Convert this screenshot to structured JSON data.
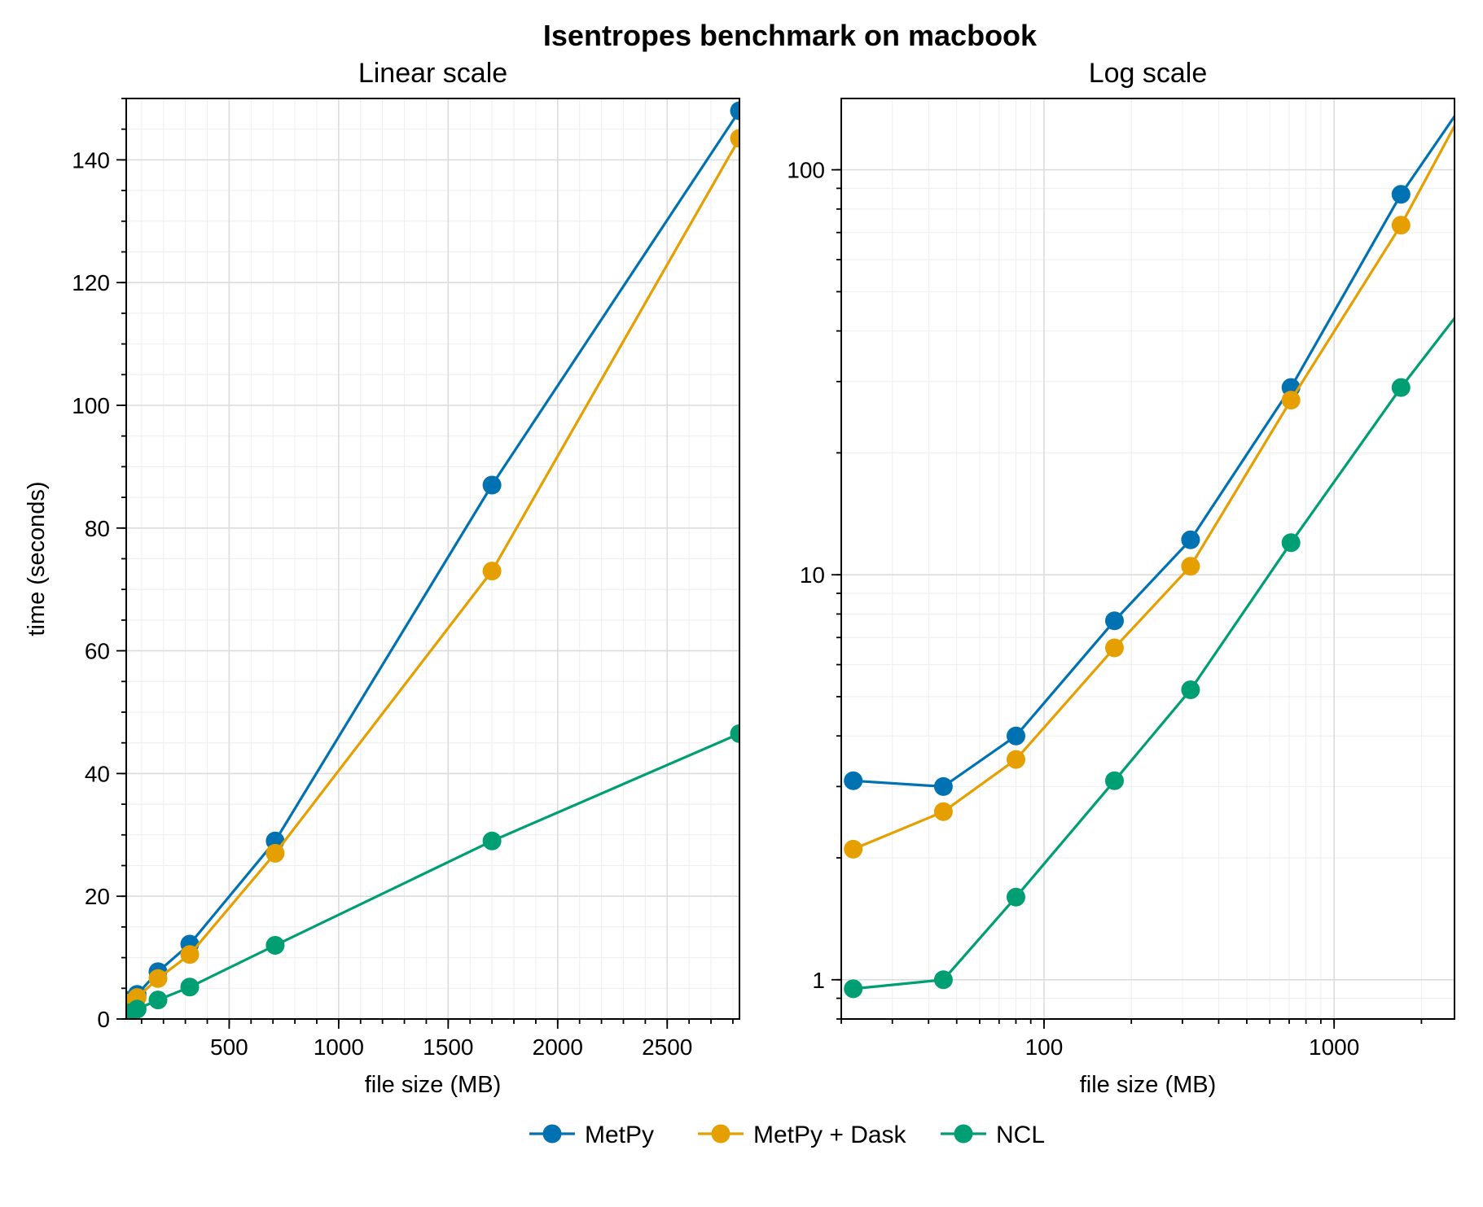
{
  "suptitle": "Isentropes benchmark on macbook",
  "legend": {
    "items": [
      "MetPy",
      "MetPy + Dask",
      "NCL"
    ]
  },
  "colors": {
    "MetPy": "#0072b2",
    "MetPy + Dask": "#e69f00",
    "NCL": "#009e73"
  },
  "chart_data": [
    {
      "type": "line",
      "title": "Linear scale",
      "xlabel": "file size (MB)",
      "ylabel": "time (seconds)",
      "xscale": "linear",
      "yscale": "linear",
      "xlim": [
        30,
        2830
      ],
      "ylim": [
        0,
        150
      ],
      "xticks": [
        500,
        1000,
        1500,
        2000,
        2500
      ],
      "xtick_labels": [
        "500",
        "1000",
        "1500",
        "2000",
        "2500"
      ],
      "yticks": [
        0,
        20,
        40,
        60,
        80,
        100,
        120,
        140
      ],
      "ytick_labels": [
        "0",
        "20",
        "40",
        "60",
        "80",
        "100",
        "120",
        "140"
      ],
      "grid": true,
      "x": [
        22,
        45,
        80,
        175,
        320,
        710,
        1700,
        2830
      ],
      "series": [
        {
          "name": "MetPy",
          "values": [
            3.1,
            3.0,
            4.0,
            7.7,
            12.2,
            29.0,
            87.0,
            148.0
          ]
        },
        {
          "name": "MetPy + Dask",
          "values": [
            2.1,
            2.6,
            3.5,
            6.6,
            10.5,
            27.0,
            73.0,
            143.5
          ]
        },
        {
          "name": "NCL",
          "values": [
            0.95,
            1.0,
            1.6,
            3.1,
            5.2,
            12.0,
            29.0,
            46.5
          ]
        }
      ]
    },
    {
      "type": "line",
      "title": "Log scale",
      "xlabel": "file size (MB)",
      "ylabel": "",
      "xscale": "log",
      "yscale": "log",
      "xlim": [
        20,
        2600
      ],
      "ylim": [
        0.8,
        150
      ],
      "xticks": [
        100,
        1000
      ],
      "xtick_labels": [
        "100",
        "1000"
      ],
      "yticks": [
        1,
        10,
        100
      ],
      "ytick_labels": [
        "1",
        "10",
        "100"
      ],
      "grid": true,
      "x": [
        22,
        45,
        80,
        175,
        320,
        710,
        1700,
        2830
      ],
      "series": [
        {
          "name": "MetPy",
          "values": [
            3.1,
            3.0,
            4.0,
            7.7,
            12.2,
            29.0,
            87.0,
            148.0
          ]
        },
        {
          "name": "MetPy + Dask",
          "values": [
            2.1,
            2.6,
            3.5,
            6.6,
            10.5,
            27.0,
            73.0,
            143.5
          ]
        },
        {
          "name": "NCL",
          "values": [
            0.95,
            1.0,
            1.6,
            3.1,
            5.2,
            12.0,
            29.0,
            46.5
          ]
        }
      ]
    }
  ]
}
